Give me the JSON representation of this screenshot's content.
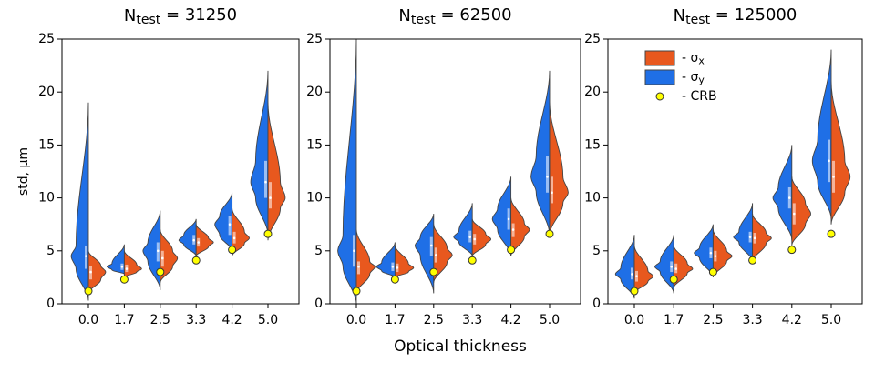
{
  "xlabel": "Optical thickness",
  "chart_data": [
    {
      "type": "violin",
      "title": [
        "N",
        "test",
        " = 31250"
      ],
      "ylabel": "std, μm",
      "categories": [
        "0.0",
        "1.7",
        "2.5",
        "3.3",
        "4.2",
        "5.0"
      ],
      "ylim": [
        0,
        25
      ],
      "yticks": [
        0,
        5,
        10,
        15,
        20,
        25
      ],
      "series": [
        {
          "color": "#1f6fe6",
          "side": "left",
          "min": [
            0.3,
            2.8,
            1.3,
            4.5,
            5,
            6.5
          ],
          "q1": [
            3.3,
            3.2,
            4.0,
            5.6,
            6.5,
            10
          ],
          "median": [
            4.5,
            3.5,
            5,
            6.0,
            7.5,
            11.5
          ],
          "q3": [
            5.5,
            3.8,
            5.8,
            6.5,
            8.3,
            13.5
          ],
          "max": [
            19,
            5.6,
            8.8,
            8,
            10.5,
            22
          ]
        },
        {
          "color": "#e8581e",
          "side": "right",
          "min": [
            1.0,
            2.5,
            2.0,
            4.5,
            4.5,
            6
          ],
          "q1": [
            2.3,
            3.0,
            3.5,
            5.4,
            5.7,
            9
          ],
          "median": [
            3.0,
            3.3,
            4.3,
            5.8,
            6.2,
            10
          ],
          "q3": [
            3.6,
            3.7,
            5.0,
            6.2,
            6.8,
            11.5
          ],
          "max": [
            5,
            5,
            7,
            7.5,
            9,
            19
          ]
        },
        {
          "type": "points",
          "color": "#ffff00",
          "values": [
            1.2,
            2.3,
            3.0,
            4.1,
            5.1,
            6.6
          ]
        }
      ]
    },
    {
      "type": "violin",
      "title": [
        "N",
        "test",
        " = 62500"
      ],
      "categories": [
        "0.0",
        "1.7",
        "2.5",
        "3.3",
        "4.2",
        "5.0"
      ],
      "ylim": [
        0,
        25
      ],
      "yticks": [
        0,
        5,
        10,
        15,
        20,
        25
      ],
      "series": [
        {
          "color": "#1f6fe6",
          "side": "left",
          "min": [
            0,
            2.5,
            1,
            4.5,
            4.5,
            6.5
          ],
          "q1": [
            3.5,
            3.1,
            4.5,
            5.8,
            7,
            10.5
          ],
          "median": [
            5,
            3.5,
            5.5,
            6.3,
            8,
            12
          ],
          "q3": [
            6.5,
            3.9,
            6.3,
            6.9,
            9,
            14
          ],
          "max": [
            25,
            5.8,
            8.5,
            9.5,
            12,
            22
          ]
        },
        {
          "color": "#e8581e",
          "side": "right",
          "min": [
            1,
            2.5,
            2,
            4.5,
            4.5,
            6.5
          ],
          "q1": [
            2.8,
            3.0,
            3.9,
            5.6,
            6.3,
            9.5
          ],
          "median": [
            3.5,
            3.4,
            4.6,
            6.1,
            7,
            10.5
          ],
          "q3": [
            4,
            3.8,
            5.3,
            6.6,
            7.6,
            12
          ],
          "max": [
            7,
            5.5,
            7.5,
            8,
            10,
            19
          ]
        },
        {
          "type": "points",
          "color": "#ffff00",
          "values": [
            1.2,
            2.3,
            3.0,
            4.1,
            5.1,
            6.6
          ]
        }
      ]
    },
    {
      "type": "violin",
      "title": [
        "N",
        "test",
        " = 125000"
      ],
      "categories": [
        "0.0",
        "1.7",
        "2.5",
        "3.3",
        "4.2",
        "5.0"
      ],
      "ylim": [
        0,
        25
      ],
      "yticks": [
        0,
        5,
        10,
        15,
        20,
        25
      ],
      "legend": "upper left",
      "series": [
        {
          "name": [
            "- σ",
            "y"
          ],
          "color": "#1f6fe6",
          "side": "left",
          "min": [
            0.5,
            1,
            2.5,
            4,
            6,
            8
          ],
          "q1": [
            2.3,
            3,
            4.3,
            5.8,
            9,
            11.5
          ],
          "median": [
            2.8,
            3.5,
            4.8,
            6.3,
            10,
            13.5
          ],
          "q3": [
            3.4,
            4,
            5.3,
            6.8,
            11,
            15.5
          ],
          "max": [
            6.5,
            6.5,
            7.5,
            9.5,
            15,
            24
          ]
        },
        {
          "name": [
            "- σ",
            "x"
          ],
          "color": "#e8581e",
          "side": "right",
          "min": [
            1,
            1.5,
            2.5,
            4,
            5.5,
            7.5
          ],
          "q1": [
            2.1,
            2.9,
            4.0,
            5.7,
            7.5,
            10.5
          ],
          "median": [
            2.6,
            3.3,
            4.5,
            6.2,
            8.5,
            12
          ],
          "q3": [
            3.1,
            3.8,
            5.0,
            6.7,
            9.5,
            13.5
          ],
          "max": [
            5.5,
            5.5,
            7,
            8.5,
            12,
            21
          ]
        },
        {
          "type": "points",
          "name": [
            "- CRB"
          ],
          "color": "#ffff00",
          "values": [
            1.2,
            2.3,
            3.0,
            4.1,
            5.1,
            6.6
          ]
        }
      ]
    }
  ]
}
